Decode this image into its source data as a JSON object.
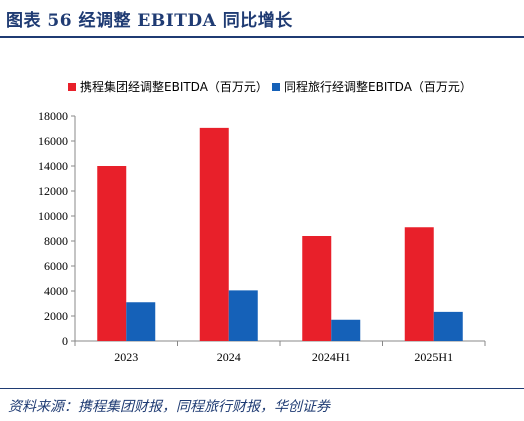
{
  "header": {
    "title": "图表 56 经调整 EBITDA 同比增长"
  },
  "footer": {
    "source": "资料来源：携程集团财报，同程旅行财报，华创证券"
  },
  "chart_data": {
    "type": "bar",
    "categories": [
      "2023",
      "2024",
      "2024H1",
      "2025H1"
    ],
    "series": [
      {
        "name": "携程集团经调整EBITDA（百万元）",
        "color": "#e8202a",
        "values": [
          14000,
          17050,
          8400,
          9100
        ]
      },
      {
        "name": "同程旅行经调整EBITDA（百万元）",
        "color": "#1561b8",
        "values": [
          3100,
          4050,
          1700,
          2330
        ]
      }
    ],
    "ylim": [
      0,
      18000
    ],
    "yticks": [
      0,
      2000,
      4000,
      6000,
      8000,
      10000,
      12000,
      14000,
      16000,
      18000
    ],
    "legend": "top",
    "grid": false
  }
}
